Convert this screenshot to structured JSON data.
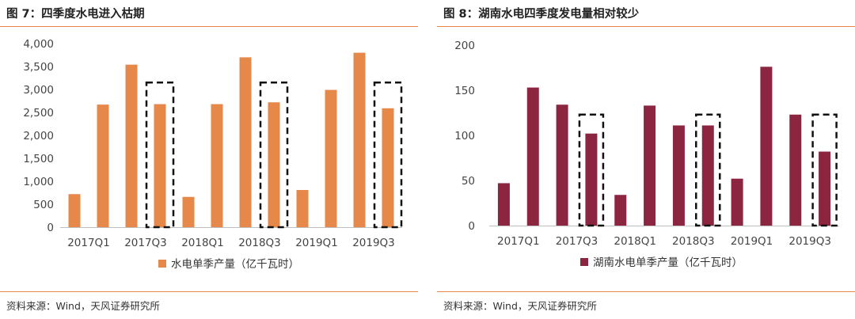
{
  "figures": [
    {
      "title": "图 7：四季度水电进入枯期",
      "source": "资料来源：Wind，天风证券研究所"
    },
    {
      "title": "图 8：湖南水电四季度发电量相对较少",
      "source": "资料来源：Wind，天风证券研究所"
    }
  ],
  "chart_data": [
    {
      "type": "bar",
      "title": "图 7：四季度水电进入枯期",
      "categories": [
        "2017Q1",
        "2017Q2",
        "2017Q3",
        "2017Q4",
        "2018Q1",
        "2018Q2",
        "2018Q3",
        "2018Q4",
        "2019Q1",
        "2019Q2",
        "2019Q3",
        "2019Q4"
      ],
      "tick_labels": [
        "2017Q1",
        "2017Q3",
        "2018Q1",
        "2018Q3",
        "2019Q1",
        "2019Q3"
      ],
      "series": [
        {
          "name": "水电单季产量（亿千瓦时）",
          "color": "#e6884a",
          "values": [
            720,
            2670,
            3540,
            2680,
            660,
            2680,
            3700,
            2720,
            810,
            2990,
            3800,
            2590
          ]
        }
      ],
      "ylim": [
        0,
        4000
      ],
      "yticks": [
        "0",
        "500",
        "1,000",
        "1,500",
        "2,000",
        "2,500",
        "3,000",
        "3,500",
        "4,000"
      ],
      "highlighted": [
        "2017Q4",
        "2018Q4",
        "2019Q4"
      ],
      "legend": "bottom",
      "xlabel": "",
      "ylabel": ""
    },
    {
      "type": "bar",
      "title": "图 8：湖南水电四季度发电量相对较少",
      "categories": [
        "2017Q1",
        "2017Q2",
        "2017Q3",
        "2017Q4",
        "2018Q1",
        "2018Q2",
        "2018Q3",
        "2018Q4",
        "2019Q1",
        "2019Q2",
        "2019Q3",
        "2019Q4"
      ],
      "tick_labels": [
        "2017Q1",
        "2017Q3",
        "2018Q1",
        "2018Q3",
        "2019Q1",
        "2019Q3"
      ],
      "series": [
        {
          "name": "湖南水电单季产量（亿千瓦时）",
          "color": "#8b2540",
          "values": [
            47,
            153,
            134,
            102,
            34,
            133,
            111,
            111,
            52,
            176,
            123,
            82
          ]
        }
      ],
      "ylim": [
        0,
        200
      ],
      "yticks": [
        "0",
        "50",
        "100",
        "150",
        "200"
      ],
      "highlighted": [
        "2017Q4",
        "2018Q4",
        "2019Q4"
      ],
      "legend": "bottom",
      "xlabel": "",
      "ylabel": ""
    }
  ]
}
